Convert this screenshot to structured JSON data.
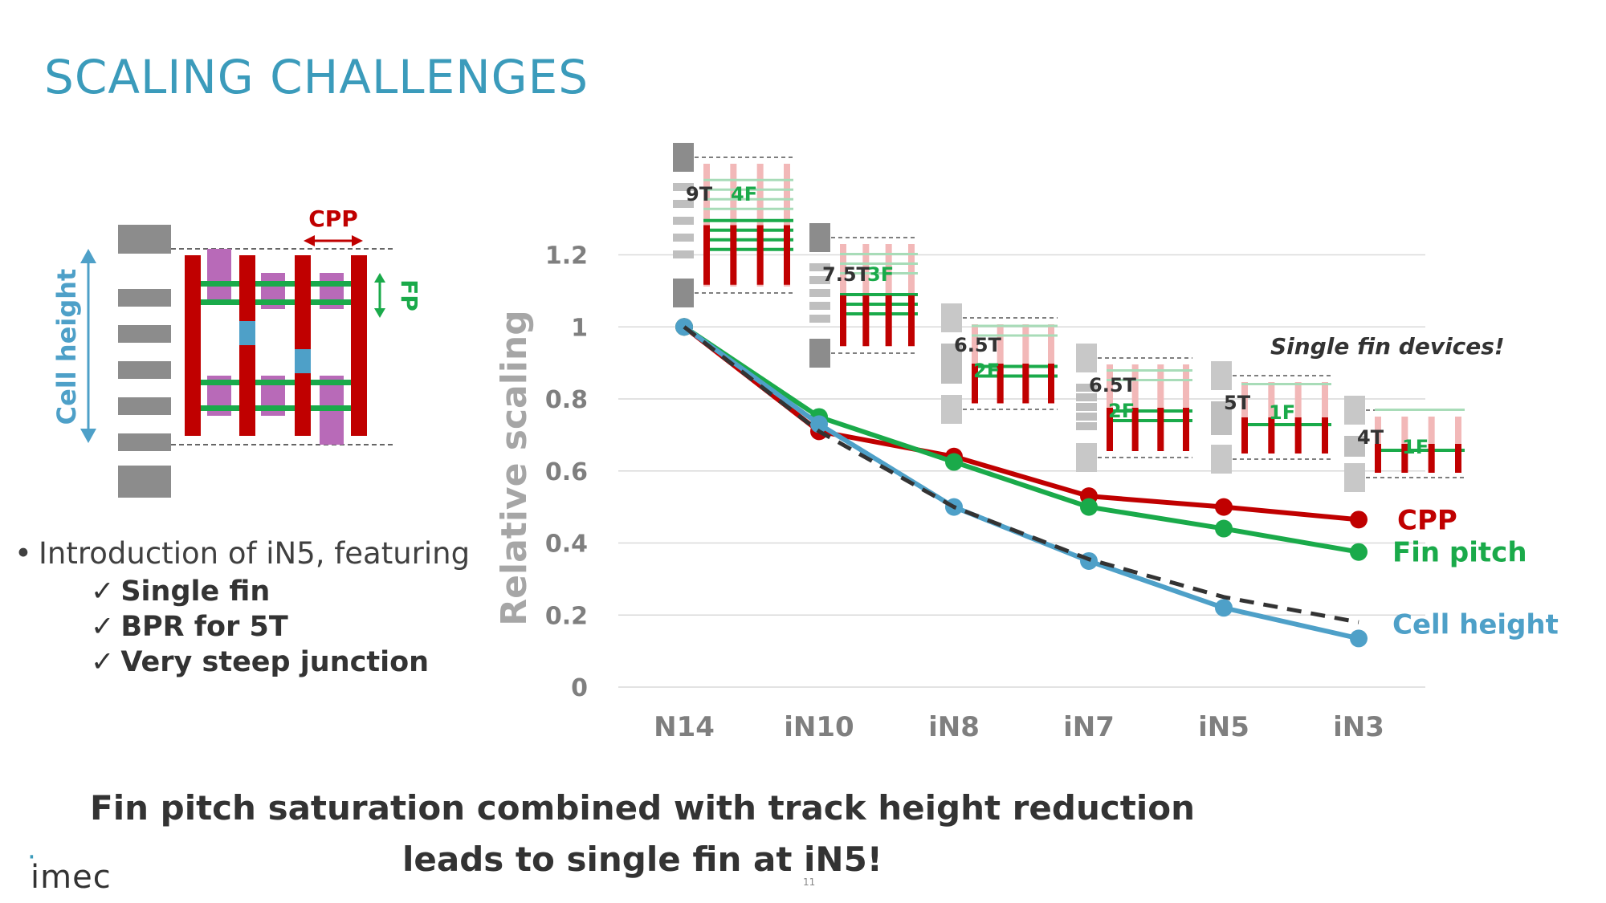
{
  "slide": {
    "title": "SCALING CHALLENGES",
    "bullet_lead": "Introduction of iN5, featuring",
    "checks": [
      "Single fin",
      "BPR for 5T",
      "Very steep junction"
    ],
    "takeaway_line1": "Fin pitch saturation combined with track height reduction",
    "takeaway_line2": "leads to single fin at iN5!",
    "logo": "imec",
    "page_number": "11"
  },
  "cell_diagram": {
    "cell_height_label": "Cell height",
    "cpp_label": "CPP",
    "fp_label": "FP"
  },
  "chart_data": {
    "type": "line",
    "categories": [
      "N14",
      "iN10",
      "iN8",
      "iN7",
      "iN5",
      "iN3"
    ],
    "ylabel": "Relative scaling",
    "xlabel": "",
    "ylim": [
      0,
      1.2
    ],
    "y_ticks": [
      0,
      0.2,
      0.4,
      0.6,
      0.8,
      1,
      1.2
    ],
    "y_tick_labels": [
      "0",
      "0.2",
      "0.4",
      "0.6",
      "0.8",
      "1",
      "1.2"
    ],
    "grid": true,
    "series": [
      {
        "name": "CPP",
        "color": "#c00000",
        "values": [
          1,
          0.71,
          0.64,
          0.53,
          0.5,
          0.465
        ]
      },
      {
        "name": "Fin pitch",
        "color": "#1aaa4a",
        "values": [
          1,
          0.75,
          0.625,
          0.5,
          0.44,
          0.375
        ]
      },
      {
        "name": "Cell height",
        "color": "#4ea0c8",
        "values": [
          1,
          0.73,
          0.5,
          0.35,
          0.22,
          0.135
        ]
      },
      {
        "name": "",
        "color": "#333333",
        "dashed": true,
        "values": [
          1,
          0.71,
          0.5,
          0.355,
          0.25,
          0.18
        ]
      }
    ],
    "annotation": "Single fin devices!",
    "cell_insets": [
      {
        "node": "N14",
        "tracks": "9T",
        "fins": "4F"
      },
      {
        "node": "iN10",
        "tracks": "7.5T",
        "fins": "3F"
      },
      {
        "node": "iN8",
        "tracks": "6.5T",
        "fins": "2F"
      },
      {
        "node": "iN7",
        "tracks": "6.5T",
        "fins": "2F"
      },
      {
        "node": "iN5",
        "tracks": "5T",
        "fins": "1F"
      },
      {
        "node": "iN3",
        "tracks": "4T",
        "fins": "1F"
      }
    ]
  }
}
